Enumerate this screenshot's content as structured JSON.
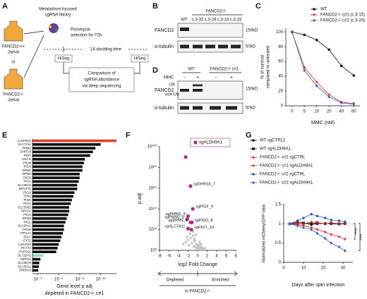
{
  "panel_labels": [
    "A",
    "B",
    "C",
    "D",
    "E",
    "F",
    "G"
  ],
  "panel_a": {
    "library": [
      "Metabolism-focused",
      "sgRNA library"
    ],
    "cell_wt": [
      "FANCD2+/+",
      "Jurkat"
    ],
    "or": "or",
    "cell_ko": [
      "FANCD2-/-",
      "Jurkat"
    ],
    "selection": [
      "Puromycin",
      "selection for 72h"
    ],
    "doubling": "14 doubling time",
    "hiseq": [
      "HiSeq",
      "HiSeq"
    ],
    "comparison": [
      "Comparison of",
      "sgRNA abundance",
      "via deep sequencing"
    ]
  },
  "panel_b": {
    "group": "FANCD2-/-",
    "lanes": [
      "WT",
      "c.3-32",
      "c.3-29",
      "c.3-24",
      "c.3-15"
    ],
    "rows": [
      "FANCD2",
      "α-tubulin"
    ],
    "sizes": [
      "150kD",
      "50kD"
    ]
  },
  "panel_d": {
    "treatment": "MMC",
    "groups": [
      "WT",
      "FANCD2-/- c#1"
    ],
    "lanes": [
      "-",
      "+",
      "-",
      "+"
    ],
    "rows": [
      "FANCD2",
      "α-tubulin"
    ],
    "forms": [
      "Ub",
      "non-Ub"
    ],
    "sizes": [
      "150kD",
      "50kD"
    ]
  },
  "chart_data": [
    {
      "type": "line",
      "categories": [
        0,
        5,
        10,
        20,
        40,
        60
      ],
      "x_label": "MMC (nM)",
      "y_label": [
        "% of survival",
        "compared to untreated"
      ],
      "ylim": [
        0,
        105
      ],
      "yticks": [
        0,
        20,
        40,
        60,
        80,
        100
      ],
      "series": [
        {
          "name": "WT",
          "color": "#111111",
          "marker": "circle",
          "values": [
            100,
            96,
            89,
            76,
            54,
            41
          ]
        },
        {
          "name": "FANCD2-/- c#1 (c.3-15)",
          "color": "#d62728",
          "marker": "triangle-down",
          "values": [
            100,
            52,
            32,
            15,
            5,
            3
          ]
        },
        {
          "name": "FANCD2-/- c#2 (c.3-29)",
          "color": "#3b5bb5",
          "marker": "diamond",
          "values": [
            100,
            48,
            27,
            12,
            4,
            2
          ]
        }
      ]
    },
    {
      "type": "barh",
      "log_x": true,
      "x_label": "Gene level p adj",
      "x_label2": "depleted in FANCD2-/- c#1",
      "categories": [
        "ALDH9A1",
        "SLC7A11",
        "PMM2",
        "DHRSX",
        "PIGT",
        "UGCG",
        "PIGM",
        "PIGS",
        "DPM1",
        "DPM2",
        "PIGO",
        "PIGA",
        "SLC35A2",
        "DPAGT1",
        "PIGU",
        "TPK1",
        "PIGK",
        "PIGC",
        "SLC35B2",
        "GPAA1",
        "PIGH",
        "DPM3",
        "PIGL",
        "SLC20A1",
        "PIGW",
        "ATP1A1",
        "PIGY",
        "EXT1",
        "L2HGDH",
        "PCYT2",
        "PAPSS1",
        "SLC25A1",
        "INPP4A",
        "SLC39A9",
        "SLC35A1",
        "SRD5A3"
      ],
      "values": [
        1e-16,
        1e-13,
        1e-12,
        3e-12,
        1e-11,
        1e-10,
        1.6e-10,
        3e-10,
        3e-10,
        1e-09,
        1e-09,
        1.6e-09,
        3e-09,
        3e-09,
        1e-08,
        1.6e-08,
        3e-08,
        5e-08,
        1e-07,
        1e-07,
        1.6e-07,
        3e-07,
        5e-07,
        1e-06,
        1e-06,
        1.6e-06,
        3e-06,
        5e-06,
        1e-05,
        1.6e-05,
        3e-05,
        0.01,
        0.03,
        0.05,
        0.06,
        0.08
      ],
      "colors": [
        "#e0412b",
        "#111111",
        "#111111",
        "#111111",
        "#111111",
        "#111111",
        "#111111",
        "#111111",
        "#111111",
        "#111111",
        "#111111",
        "#111111",
        "#111111",
        "#111111",
        "#111111",
        "#111111",
        "#111111",
        "#111111",
        "#111111",
        "#111111",
        "#111111",
        "#111111",
        "#111111",
        "#111111",
        "#111111",
        "#111111",
        "#111111",
        "#111111",
        "#111111",
        "#111111",
        "#111111",
        "#8fd9c8",
        "#111111",
        "#111111",
        "#111111",
        "#111111"
      ],
      "xlim": [
        1,
        1e-16
      ],
      "xticks": [
        {
          "value": 0.1,
          "label": "10⁻¹"
        },
        {
          "value": 1e-05,
          "label": "10⁻⁵"
        },
        {
          "value": 1e-09,
          "label": "10⁻⁹"
        },
        {
          "value": 1e-13,
          "label": "10⁻¹³"
        }
      ]
    },
    {
      "type": "scatter",
      "log_y": true,
      "x_label": "log2 Fold Change",
      "y_label": "p adj",
      "legend_label": "sgALDH9A1",
      "direction": [
        "Depleted",
        "Enriched"
      ],
      "context": "in FANCD2-/-",
      "xlim": [
        -8,
        8
      ],
      "xticks": [
        -8,
        -6,
        -4,
        -2,
        0,
        2,
        4,
        6,
        8
      ],
      "ylim": [
        1,
        1e-100
      ],
      "yticks": [
        {
          "value": 1,
          "label": "10⁰"
        },
        {
          "value": 1e-20,
          "label": "10²⁰"
        },
        {
          "value": 1e-40,
          "label": "10⁴⁰"
        },
        {
          "value": 1e-60,
          "label": "10⁶⁰"
        },
        {
          "value": 1e-80,
          "label": "10⁸⁰"
        },
        {
          "value": 1e-100,
          "label": "10¹⁰⁰"
        }
      ],
      "series": [
        {
          "color": "#c4c4c4",
          "size": 1.8,
          "x": [
            -3,
            -2.5,
            -2,
            -1.8,
            -1.5,
            -1.2,
            -1,
            -0.8,
            -0.6,
            -0.5,
            -0.3,
            -0.2,
            0,
            0.1,
            0.2,
            0.3,
            0.5,
            0.6,
            0.8,
            1,
            1.2,
            1.5,
            -1,
            -0.7,
            -0.4,
            0,
            0.4,
            -1.6,
            -2.2,
            0.7
          ],
          "y": [
            1e-06,
            1e-08,
            1e-10,
            1e-05,
            1e-12,
            1e-07,
            1e-14,
            0.0001,
            1e-09,
            0.001,
            1e-06,
            0.01,
            0.1,
            0.001,
            1e-05,
            0.01,
            0.0001,
            0.1,
            0.001,
            0.01,
            0.1,
            0.01,
            1e-18,
            1e-11,
            1e-15,
            1e-05,
            1e-08,
            1e-16,
            1e-13,
            1e-06
          ]
        },
        {
          "color": "#a8327a",
          "size": 2.6,
          "x": [
            -2.5,
            -1.5,
            -1,
            -2,
            -2.2,
            -1.2,
            -1.5,
            -2,
            -1.3
          ],
          "y": [
            1e-90,
            1e-62,
            1e-40,
            1e-33,
            1e-30,
            1e-27,
            1e-27,
            1e-21,
            1e-20
          ],
          "labels": [
            null,
            "sgDHRSX_7",
            "sgPIGF_9",
            "sgPMM2_4",
            "sgPMM2_8",
            "sgPIGO_8",
            "sgDPM1_4",
            "sgSLC7A11",
            "sgPIGT_10"
          ]
        }
      ]
    },
    {
      "type": "line",
      "x_label": "Days after spin infection",
      "y_label": "Normalized mCherry/GFP ratio",
      "x": [
        3,
        7,
        10,
        14,
        17,
        21,
        24,
        28,
        31
      ],
      "xlim": [
        0,
        35
      ],
      "xticks": [
        0,
        10,
        20,
        30
      ],
      "ylim": [
        0,
        1.5
      ],
      "yticks": [
        0,
        0.5,
        1,
        1.5
      ],
      "reference_line": 1,
      "annotations": [
        "****",
        "****"
      ],
      "series": [
        {
          "name": "WT sgCTRL1",
          "color": "#111111",
          "marker": "circle",
          "values": [
            1,
            1,
            1.02,
            0.98,
            1,
            1.01,
            1,
            0.99,
            1
          ]
        },
        {
          "name": "WT sgALDH9A1",
          "color": "#111111",
          "marker": "square",
          "values": [
            1,
            1.05,
            1.02,
            1,
            1.03,
            1,
            1.02,
            1,
            1.01
          ]
        },
        {
          "name": "FANCD2-/- c#1 sgCTRL",
          "color": "#d62728",
          "marker": "triangle",
          "values": [
            1,
            1.02,
            1,
            1.05,
            1.03,
            1,
            1.02,
            1,
            1
          ]
        },
        {
          "name": "FANCD2-/- c#1 sgALDH9A1",
          "color": "#d62728",
          "marker": "triangle-down",
          "values": [
            1,
            0.98,
            0.95,
            0.9,
            0.85,
            0.78,
            0.72,
            0.66,
            0.6
          ]
        },
        {
          "name": "FANCD2-/- c#2 sgCTRL",
          "color": "#3b5bb5",
          "marker": "circle",
          "values": [
            1,
            1.08,
            1.15,
            1.25,
            1.2,
            1.15,
            1.1,
            1.08,
            1.05
          ]
        },
        {
          "name": "FANCD2-/- c#2 sgALDH9A1",
          "color": "#3b5bb5",
          "marker": "diamond",
          "values": [
            1,
            0.95,
            0.9,
            0.85,
            0.75,
            0.62,
            0.5,
            0.4,
            0.3
          ]
        }
      ]
    }
  ]
}
